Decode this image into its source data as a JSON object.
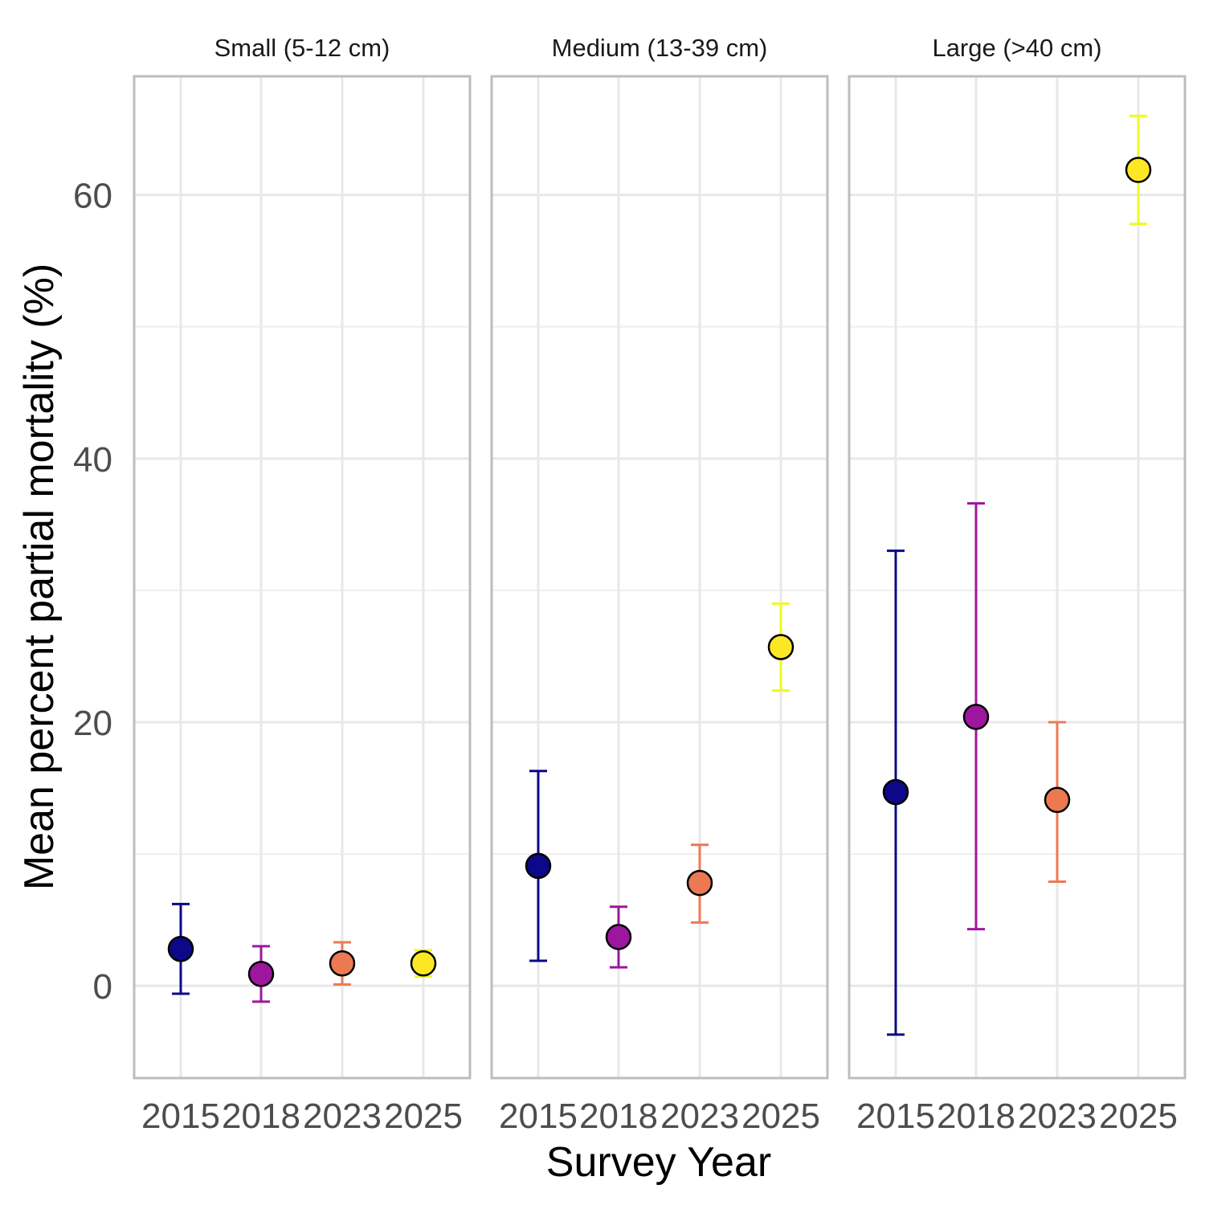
{
  "chart_data": {
    "type": "scatter",
    "xlabel": "Survey Year",
    "ylabel": "Mean percent partial mortality (%)",
    "ylim": [
      -7,
      69
    ],
    "y_ticks": [
      0,
      20,
      40,
      60
    ],
    "categories": [
      "2015",
      "2018",
      "2023",
      "2025"
    ],
    "colors": [
      "#0d0887",
      "#9c179e",
      "#ed7953",
      "#f0f921"
    ],
    "point_colors": [
      "#0d0887",
      "#9c179e",
      "#ed7953",
      "#fde725"
    ],
    "grid": true,
    "facets": [
      {
        "title": "Small (5-12 cm)",
        "points": [
          {
            "year": "2015",
            "mean": 2.8,
            "lower": -0.6,
            "upper": 6.2
          },
          {
            "year": "2018",
            "mean": 0.9,
            "lower": -1.2,
            "upper": 3.0
          },
          {
            "year": "2023",
            "mean": 1.7,
            "lower": 0.1,
            "upper": 3.3
          },
          {
            "year": "2025",
            "mean": 1.7,
            "lower": 0.7,
            "upper": 2.7
          }
        ]
      },
      {
        "title": "Medium (13-39 cm)",
        "points": [
          {
            "year": "2015",
            "mean": 9.1,
            "lower": 1.9,
            "upper": 16.3
          },
          {
            "year": "2018",
            "mean": 3.7,
            "lower": 1.4,
            "upper": 6.0
          },
          {
            "year": "2023",
            "mean": 7.8,
            "lower": 4.8,
            "upper": 10.7
          },
          {
            "year": "2025",
            "mean": 25.7,
            "lower": 22.4,
            "upper": 29.0
          }
        ]
      },
      {
        "title": "Large (>40 cm)",
        "points": [
          {
            "year": "2015",
            "mean": 14.7,
            "lower": -3.7,
            "upper": 33.0
          },
          {
            "year": "2018",
            "mean": 20.4,
            "lower": 4.3,
            "upper": 36.6
          },
          {
            "year": "2023",
            "mean": 14.1,
            "lower": 7.9,
            "upper": 20.0
          },
          {
            "year": "2025",
            "mean": 61.9,
            "lower": 57.8,
            "upper": 66.0
          }
        ]
      }
    ]
  }
}
